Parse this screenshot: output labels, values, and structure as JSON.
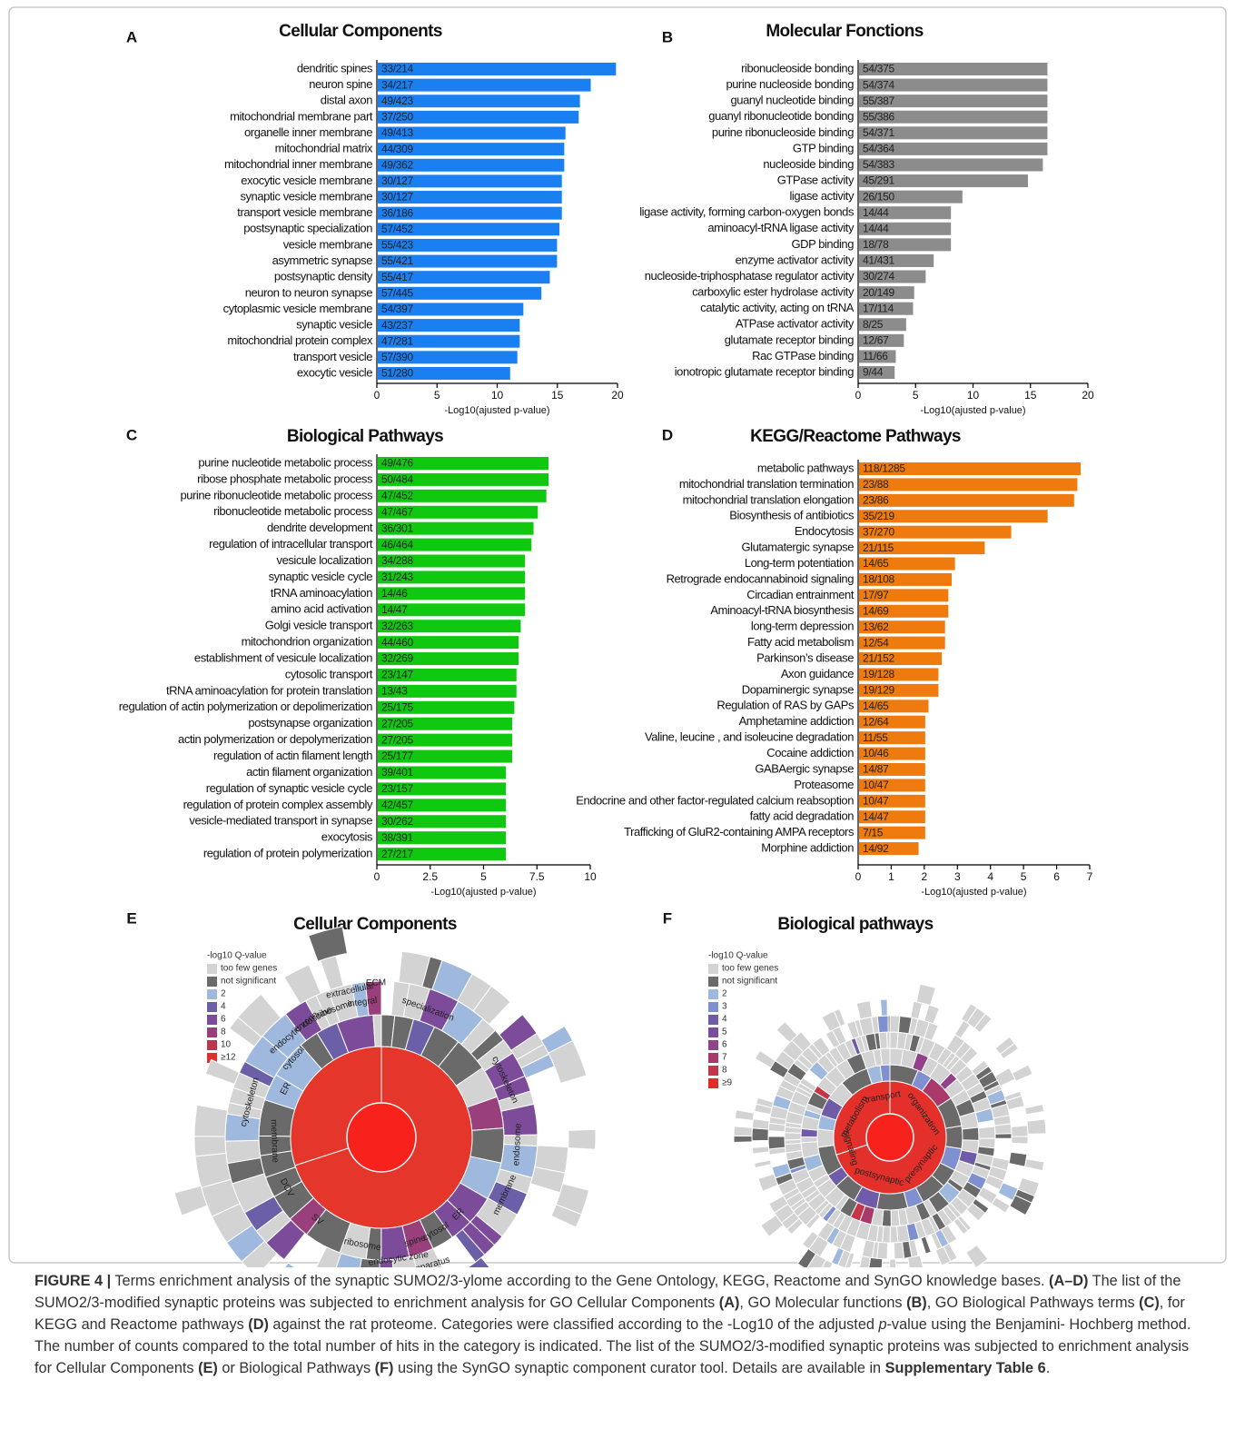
{
  "chart_data": [
    {
      "type": "hbar",
      "panel": "A",
      "title": "Cellular Components",
      "x_label": "-Log10(ajusted p-value)",
      "color": "#1a7ff0",
      "categories": [
        "dendritic spines",
        "neuron spine",
        "distal axon",
        "mitochondrial membrane part",
        "organelle inner membrane",
        "mitochondrial matrix",
        "mitochondrial inner membrane",
        "exocytic vesicle membrane",
        "synaptic vesicle membrane",
        "transport vesicle membrane",
        "postsynaptic specialization",
        "vesicle membrane",
        "asymmetric synapse",
        "postsynaptic density",
        "neuron to neuron synapse",
        "cytoplasmic vesicle membrane",
        "synaptic vesicle",
        "mitochondrial protein complex",
        "transport vesicle",
        "exocytic vesicle"
      ],
      "values": [
        19.8,
        17.7,
        16.8,
        16.7,
        15.6,
        15.5,
        15.5,
        15.3,
        15.3,
        15.3,
        15.1,
        14.9,
        14.9,
        14.3,
        13.6,
        12.1,
        11.8,
        11.8,
        11.6,
        11.0
      ],
      "counts": [
        "33/214",
        "34/217",
        "49/423",
        "37/250",
        "49/413",
        "44/309",
        "49/362",
        "30/127",
        "30/127",
        "36/186",
        "57/452",
        "55/423",
        "55/421",
        "55/417",
        "57/445",
        "54/397",
        "43/237",
        "47/281",
        "57/390",
        "51/280"
      ],
      "xlim": [
        0,
        20
      ],
      "xticks": [
        0,
        5,
        10,
        15,
        20
      ]
    },
    {
      "type": "hbar",
      "panel": "B",
      "title": "Molecular Fonctions",
      "x_label": "-Log10(ajusted p-value)",
      "color": "#8c8c8c",
      "categories": [
        "ribonucleoside bonding",
        "purine nucleoside bonding",
        "guanyl nucleotide binding",
        "guanyl ribonucleotide bonding",
        "purine ribonucleoside binding",
        "GTP binding",
        "nucleoside binding",
        "GTPase activity",
        "ligase activity",
        "ligase activity, forming carbon-oxygen bonds",
        "aminoacyl-tRNA ligase activity",
        "GDP binding",
        "enzyme activator activity",
        "nucleoside-triphosphatase regulator activity",
        "carboxylic ester hydrolase activity",
        "catalytic activity, acting on tRNA",
        "ATPase activator activity",
        "glutamate receptor binding",
        "Rac GTPase binding",
        "ionotropic glutamate receptor binding"
      ],
      "values": [
        16.4,
        16.4,
        16.4,
        16.4,
        16.4,
        16.4,
        16.0,
        14.7,
        9.0,
        8.0,
        8.0,
        8.0,
        6.5,
        5.8,
        4.8,
        4.7,
        4.1,
        3.9,
        3.2,
        3.1
      ],
      "counts": [
        "54/375",
        "54/374",
        "55/387",
        "55/386",
        "54/371",
        "54/364",
        "54/383",
        "45/291",
        "26/150",
        "14/44",
        "14/44",
        "18/78",
        "41/431",
        "30/274",
        "20/149",
        "17/114",
        "8/25",
        "12/67",
        "11/66",
        "9/44"
      ],
      "xlim": [
        0,
        20
      ],
      "xticks": [
        0,
        5,
        10,
        15,
        20
      ]
    },
    {
      "type": "hbar",
      "panel": "C",
      "title": "Biological Pathways",
      "x_label": "-Log10(ajusted p-value)",
      "color": "#10c810",
      "categories": [
        "purine nucleotide metabolic process",
        "ribose phosphate metabolic process",
        "purine ribonucleotide metabolic process",
        "ribonucleotide metabolic process",
        "dendrite development",
        "regulation of intracellular transport",
        "vesicule localization",
        "synaptic vesicle cycle",
        "tRNA aminoacylation",
        "amino acid activation",
        "Golgi vesicle transport",
        "mitochondrion organization",
        "establishment of vesicule localization",
        "cytosolic transport",
        "tRNA aminoacylation for protein translation",
        "regulation of actin polymerization or depolimerization",
        "postsynapse organization",
        "actin polymerization or depolymerization",
        "regulation of actin filament length",
        "actin filament organization",
        "regulation of synaptic vesicle cycle",
        "regulation of protein complex assembly",
        "vesicle-mediated transport in synapse",
        "exocytosis",
        "regulation of protein polymerization"
      ],
      "values": [
        8.0,
        8.0,
        7.9,
        7.5,
        7.3,
        7.2,
        6.9,
        6.9,
        6.9,
        6.9,
        6.7,
        6.6,
        6.6,
        6.5,
        6.5,
        6.4,
        6.3,
        6.3,
        6.3,
        6.0,
        6.0,
        6.0,
        6.0,
        6.0,
        6.0
      ],
      "counts": [
        "49/476",
        "50/484",
        "47/452",
        "47/467",
        "36/301",
        "46/464",
        "34/288",
        "31/243",
        "14/46",
        "14/47",
        "32/263",
        "44/460",
        "32/269",
        "23/147",
        "13/43",
        "25/175",
        "27/205",
        "27/205",
        "25/177",
        "39/401",
        "23/157",
        "42/457",
        "30/262",
        "38/391",
        "27/217"
      ],
      "xlim": [
        0,
        10
      ],
      "xticks": [
        0,
        2.5,
        5,
        7.5,
        10
      ]
    },
    {
      "type": "hbar",
      "panel": "D",
      "title": "KEGG/Reactome Pathways",
      "x_label": "-Log10(ajusted p-value)",
      "color": "#ef7b0e",
      "categories": [
        "metabolic pathways",
        "mitochondrial translation termination",
        "mitochondrial translation elongation",
        "Biosynthesis of antibiotics",
        "Endocytosis",
        "Glutamatergic synapse",
        "Long-term potentiation",
        "Retrograde endocannabinoid signaling",
        "Circadian entrainment",
        "Aminoacyl-tRNA biosynthesis",
        "long-term depression",
        "Fatty acid metabolism",
        "Parkinson’s disease",
        "Axon guidance",
        "Dopaminergic synapse",
        "Regulation of RAS by GAPs",
        "Amphetamine addiction",
        "Valine, leucine , and isoleucine degradation",
        "Cocaine addiction",
        "GABAergic synapse",
        "Proteasome",
        "Endocrine and other factor-regulated calcium reabsoption",
        "fatty acid degradation",
        "Trafficking of GluR2-containing AMPA receptors",
        "Morphine addiction"
      ],
      "values": [
        6.7,
        6.6,
        6.5,
        5.7,
        4.6,
        3.8,
        2.9,
        2.8,
        2.7,
        2.7,
        2.6,
        2.6,
        2.5,
        2.4,
        2.4,
        2.1,
        2.0,
        2.0,
        2.0,
        2.0,
        2.0,
        2.0,
        2.0,
        2.0,
        1.8
      ],
      "counts": [
        "118/1285",
        "23/88",
        "23/86",
        "35/219",
        "37/270",
        "21/115",
        "14/65",
        "18/108",
        "17/97",
        "14/69",
        "13/62",
        "12/54",
        "21/152",
        "19/128",
        "19/129",
        "14/65",
        "12/64",
        "11/55",
        "10/46",
        "14/87",
        "10/47",
        "10/47",
        "14/47",
        "7/15",
        "14/92"
      ],
      "xlim": [
        0,
        7
      ],
      "xticks": [
        0,
        1,
        2,
        3,
        4,
        5,
        6,
        7
      ]
    }
  ],
  "sunbursts": [
    {
      "panel": "E",
      "title": "Cellular Components",
      "legend_title": "-log10 Q-value",
      "legend": [
        {
          "label": "too few genes",
          "color": "#d3d3d3"
        },
        {
          "label": "not significant",
          "color": "#6a6a6a"
        },
        {
          "label": "2",
          "color": "#9fb9de"
        },
        {
          "label": "4",
          "color": "#6b5fa8"
        },
        {
          "label": "6",
          "color": "#7c4c9b"
        },
        {
          "label": "8",
          "color": "#983f7c"
        },
        {
          "label": "10",
          "color": "#b9364f"
        },
        {
          "label": "≥12",
          "color": "#e0302d"
        }
      ],
      "labels": [
        "specialization",
        "cytoskeleton",
        "endosome",
        "membrane",
        "ER",
        "cytosol",
        "spine",
        "endocytic zone",
        "Golgi apparatus",
        "ribosome",
        "active zone",
        "SV",
        "DCV",
        "membrane",
        "cytoskeleton",
        "ER",
        "cytosol",
        "endocytic zone",
        "endosome",
        "ribosome",
        "extracellular",
        "integral",
        "ECM"
      ]
    },
    {
      "panel": "F",
      "title": "Biological pathways",
      "legend_title": "-log10 Q-value",
      "legend": [
        {
          "label": "too few genes",
          "color": "#d3d3d3"
        },
        {
          "label": "not significant",
          "color": "#6a6a6a"
        },
        {
          "label": "2",
          "color": "#9fb9de"
        },
        {
          "label": "3",
          "color": "#7f8fcf"
        },
        {
          "label": "4",
          "color": "#6f5ba7"
        },
        {
          "label": "5",
          "color": "#7a4e9c"
        },
        {
          "label": "6",
          "color": "#93418a"
        },
        {
          "label": "7",
          "color": "#a8396a"
        },
        {
          "label": "8",
          "color": "#c53448"
        },
        {
          "label": "≥9",
          "color": "#e32c28"
        }
      ],
      "labels": [
        "transport",
        "metabolism",
        "signaling",
        "postsynaptic",
        "presynaptic",
        "organization"
      ]
    }
  ],
  "caption": [
    {
      "text": "FIGURE 4 |",
      "bold": true
    },
    {
      "text": " Terms enrichment analysis of the synaptic SUMO2/3-ylome according to the Gene Ontology, KEGG, Reactome and SynGO knowledge bases. "
    },
    {
      "text": "(A–D)",
      "bold": true
    },
    {
      "text": " The list of the SUMO2/3-modified synaptic proteins was subjected to enrichment analysis for GO Cellular Components "
    },
    {
      "text": "(A)",
      "bold": true
    },
    {
      "text": ", GO Molecular functions "
    },
    {
      "text": "(B)",
      "bold": true
    },
    {
      "text": ", GO Biological Pathways terms "
    },
    {
      "text": "(C)",
      "bold": true
    },
    {
      "text": ", for KEGG and Reactome pathways "
    },
    {
      "text": "(D)",
      "bold": true
    },
    {
      "text": " against the rat proteome. Categories were classified according to the -Log10 of the adjusted "
    },
    {
      "text": "p",
      "italic": true
    },
    {
      "text": "-value using the Benjamini- Hochberg method. The number of counts compared to the total number of hits in the category is indicated. The list of the SUMO2/3-modified synaptic proteins was subjected to enrichment analysis for Cellular Components "
    },
    {
      "text": "(E)",
      "bold": true
    },
    {
      "text": " or Biological Pathways "
    },
    {
      "text": "(F)",
      "bold": true
    },
    {
      "text": " using the SynGO synaptic component curator tool. Details are available in "
    },
    {
      "text": "Supplementary Table 6",
      "bold": true
    },
    {
      "text": "."
    }
  ]
}
